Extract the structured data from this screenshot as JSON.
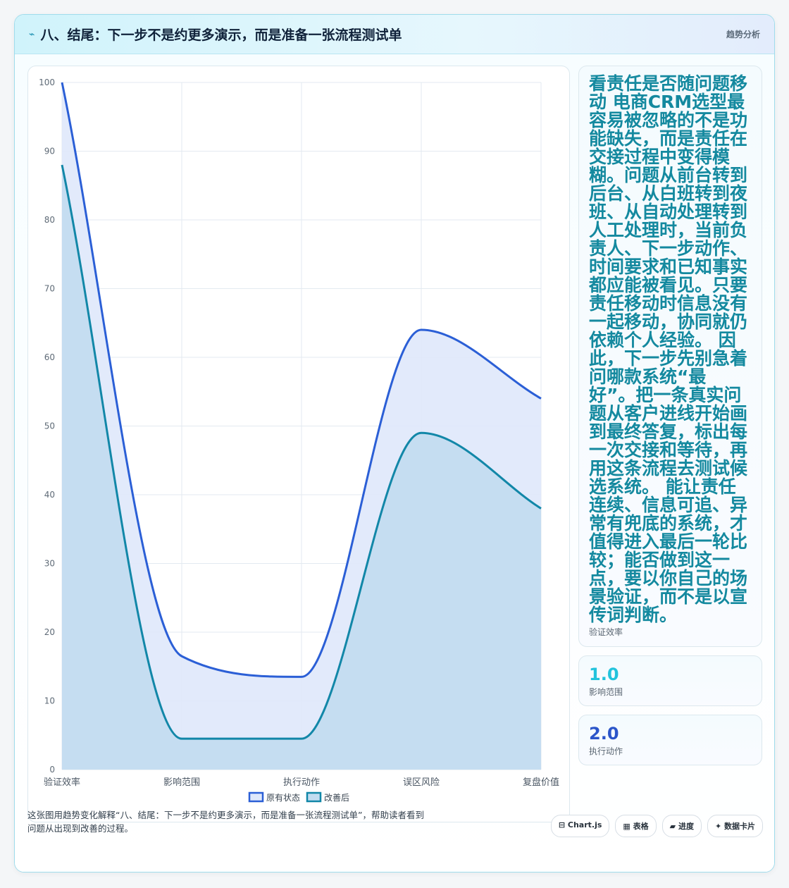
{
  "header": {
    "icon": "lightning-icon",
    "title": "八、结尾：下一步不是约更多演示，而是准备一张流程测试单",
    "tag": "趋势分析"
  },
  "side": {
    "main_text": "看责任是否随问题移动 电商CRM选型最容易被忽略的不是功能缺失，而是责任在交接过程中变得模糊。问题从前台转到后台、从白班转到夜班、从自动处理转到人工处理时，当前负责人、下一步动作、时间要求和已知事实都应能被看见。只要责任移动时信息没有一起移动，协同就仍依赖个人经验。 因此，下一步先别急着问哪款系统“最好”。把一条真实问题从客户进线开始画到最终答复，标出每一次交接和等待，再用这条流程去测试候选系统。 能让责任连续、信息可追、异常有兜底的系统，才值得进入最后一轮比较；能否做到这一点，要以你自己的场景验证，而不是以宣传词判断。",
    "main_label": "验证效率",
    "stats": [
      {
        "value": "1.0",
        "label": "影响范围",
        "color": "#22c3dc"
      },
      {
        "value": "2.0",
        "label": "执行动作",
        "color": "#2b55c9"
      }
    ]
  },
  "footer": {
    "description": "这张图用趋势变化解释“八、结尾：下一步不是约更多演示，而是准备一张流程测试单”，帮助读者看到问题从出现到改善的过程。",
    "chips": [
      "⊟ Chart.js",
      "▦ 表格",
      "▰ 进度",
      "✦ 数据卡片"
    ]
  },
  "chart_data": {
    "type": "area",
    "categories": [
      "验证效率",
      "影响范围",
      "执行动作",
      "误区风险",
      "复盘价值"
    ],
    "series": [
      {
        "name": "原有状态",
        "values": [
          100,
          16.5,
          13.5,
          64,
          54
        ],
        "color": "#2b5fd6",
        "fill": "#dfe8fb"
      },
      {
        "name": "改善后",
        "values": [
          88,
          4.5,
          4.5,
          49,
          38
        ],
        "color": "#1287a8",
        "fill": "#c2dcf0"
      }
    ],
    "ylim": [
      0,
      100
    ],
    "yticks": [
      0,
      10,
      20,
      30,
      40,
      50,
      60,
      70,
      80,
      90,
      100
    ],
    "legend_position": "bottom",
    "grid": true
  }
}
